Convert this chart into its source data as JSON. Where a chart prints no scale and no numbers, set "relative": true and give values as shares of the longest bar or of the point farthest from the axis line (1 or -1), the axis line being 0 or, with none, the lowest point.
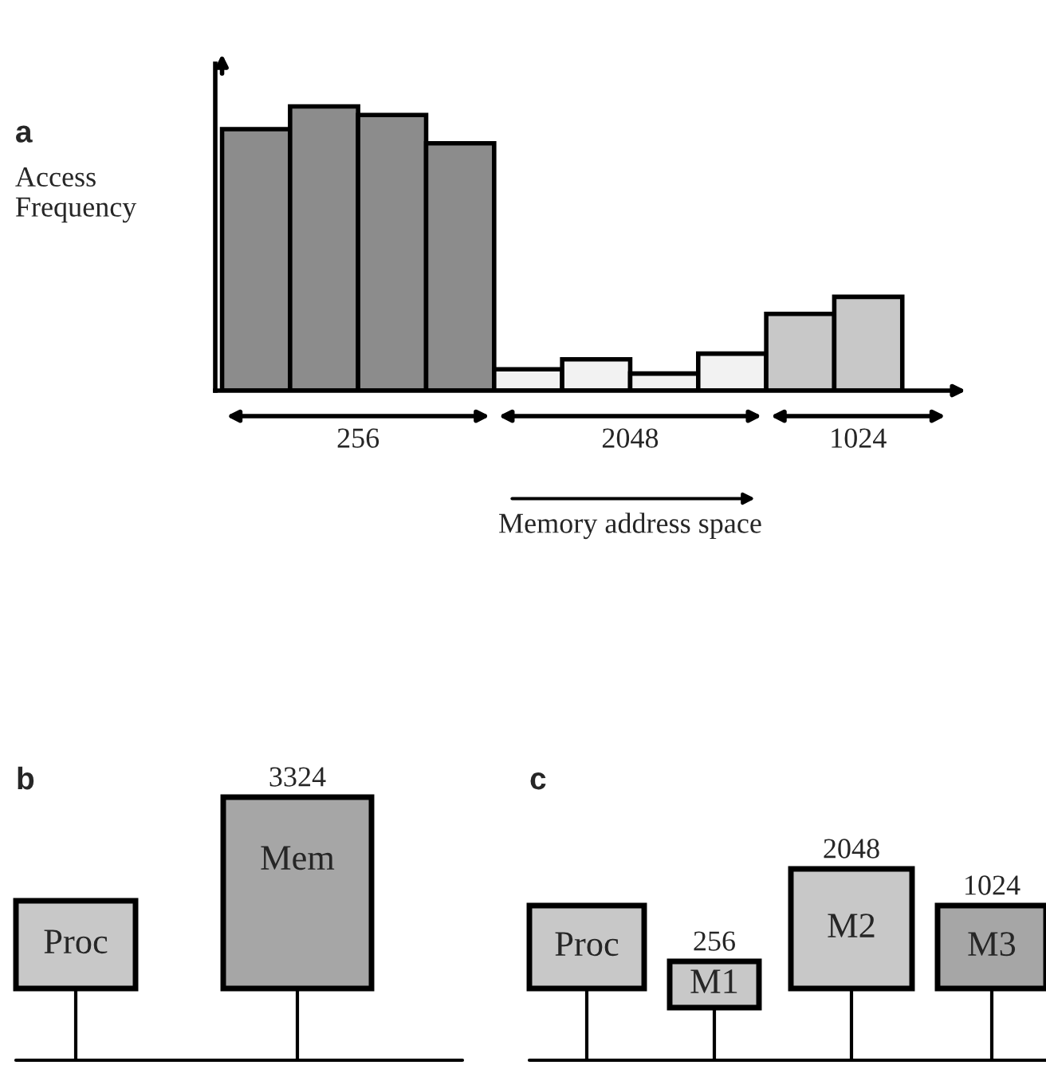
{
  "chart_data": [
    {
      "type": "bar",
      "title": "a",
      "ylabel": "Access\nFrequency",
      "relative": true,
      "categories": [
        null,
        null,
        null,
        null,
        null,
        null,
        null,
        null,
        null,
        null
      ],
      "values": [
        0.92,
        1.0,
        0.97,
        0.87,
        0.075,
        0.11,
        0.06,
        0.13,
        0.27,
        0.33
      ],
      "colors": [
        "#8c8c8c",
        "#8c8c8c",
        "#8c8c8c",
        "#8c8c8c",
        "#f2f2f2",
        "#f2f2f2",
        "#f2f2f2",
        "#f2f2f2",
        "#c8c8c8",
        "#c8c8c8"
      ],
      "annotations": [
        "256",
        "2048",
        "1024",
        "Memory address space"
      ]
    },
    {
      "type": "other",
      "title": "b",
      "annotations": [
        "Proc",
        "Mem",
        "3324"
      ]
    },
    {
      "type": "other",
      "title": "c",
      "annotations": [
        "Proc",
        "M1",
        "M2",
        "M3",
        "256",
        "2048",
        "1024"
      ]
    }
  ]
}
